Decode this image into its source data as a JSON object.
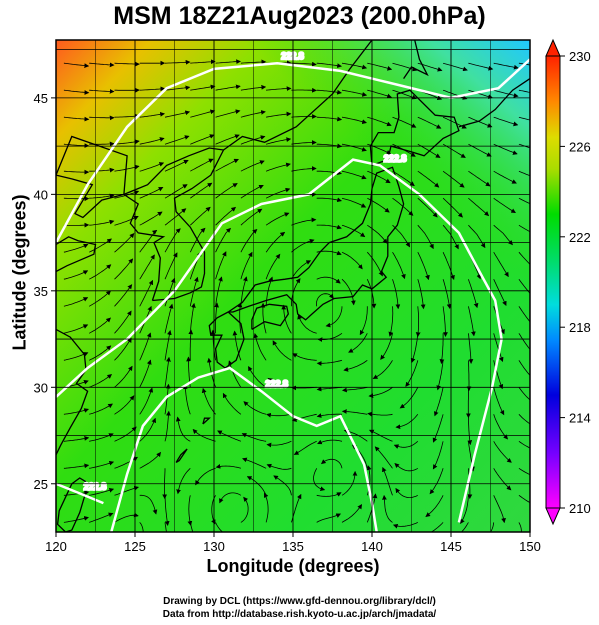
{
  "title": "MSM 18Z21Aug2023 (200.0hPa)",
  "x_axis": {
    "label": "Longitude (degrees)",
    "range": [
      120,
      150
    ],
    "ticks": [
      "120",
      "125",
      "130",
      "135",
      "140",
      "145",
      "150"
    ]
  },
  "y_axis": {
    "label": "Latitude  (degrees)",
    "range": [
      22.5,
      48
    ],
    "ticks": [
      "25",
      "30",
      "35",
      "40",
      "45"
    ]
  },
  "colorbar": {
    "range": [
      210,
      230
    ],
    "ticks": [
      "210",
      "214",
      "218",
      "222",
      "226",
      "230"
    ],
    "colors": [
      "#ff00ff",
      "#0000dd",
      "#00dddd",
      "#00dd00",
      "#dddd00",
      "#ff2200"
    ]
  },
  "contours": [
    "222.8",
    "222.8",
    "222.8",
    "222.8"
  ],
  "credits": {
    "line1": "Drawing by DCL (https://www.gfd-dennou.org/library/dcl/)",
    "line2": "Data from http://database.rish.kyoto-u.ac.jp/arch/jmadata/"
  }
}
